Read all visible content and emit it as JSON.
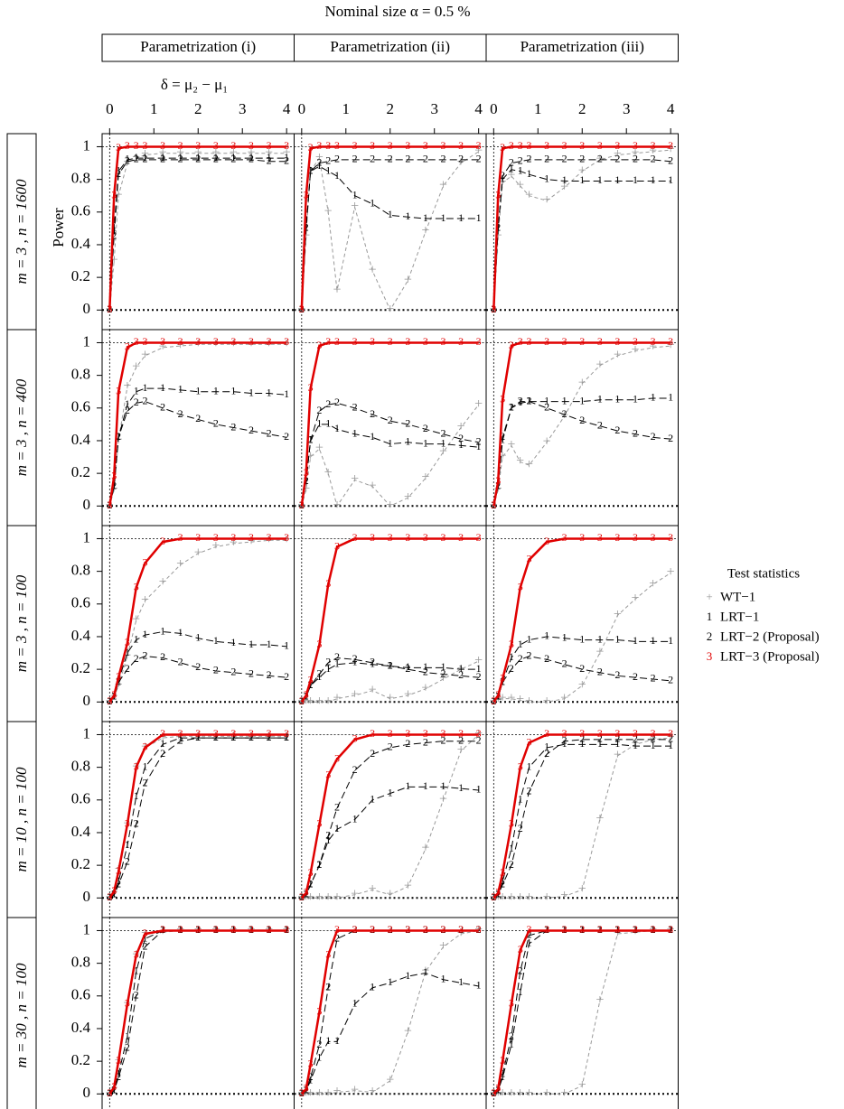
{
  "chart_data": {
    "type": "line",
    "title": "Nominal size α =  0.5 %",
    "x_label": "δ = μ₂ − μ₁",
    "y_label": "Power",
    "column_titles": [
      "Parametrization (i)",
      "Parametrization (ii)",
      "Parametrization (iii)"
    ],
    "row_labels": [
      "m = 3 ,  n = 1600",
      "m = 3 ,  n = 400",
      "m = 3 ,  n = 100",
      "m = 10 ,  n = 100",
      "m = 30 ,  n = 100"
    ],
    "x": [
      0,
      0.1,
      0.2,
      0.4,
      0.6,
      0.8,
      1.2,
      1.6,
      2,
      2.4,
      2.8,
      3.2,
      3.6,
      4
    ],
    "xlim": [
      -0.17,
      4.17
    ],
    "xticks": [
      0,
      1,
      2,
      3,
      4
    ],
    "ylim": [
      -0.12,
      1.08
    ],
    "yticks": [
      0,
      0.2,
      0.4,
      0.6,
      0.8,
      1
    ],
    "legend_title": "Test statistics",
    "series": [
      {
        "name": "WT−1",
        "symbol": "+",
        "color": "#999999",
        "linestyle": "dashed"
      },
      {
        "name": "LRT−1",
        "symbol": "1",
        "color": "#000000",
        "linestyle": "dashed"
      },
      {
        "name": "LRT−2 (Proposal)",
        "symbol": "2",
        "color": "#000000",
        "linestyle": "dashed"
      },
      {
        "name": "LRT−3 (Proposal)",
        "symbol": "3",
        "color": "#e00000",
        "linestyle": "solid"
      }
    ],
    "panels": [
      [
        {
          "values": [
            [
              0,
              0.3,
              0.7,
              0.9,
              0.93,
              0.95,
              0.96,
              0.96,
              0.96,
              0.96,
              0.96,
              0.96,
              0.96,
              0.96
            ],
            [
              0,
              0.5,
              0.85,
              0.92,
              0.93,
              0.93,
              0.93,
              0.93,
              0.93,
              0.93,
              0.93,
              0.93,
              0.93,
              0.93
            ],
            [
              0,
              0.45,
              0.83,
              0.91,
              0.92,
              0.92,
              0.92,
              0.92,
              0.92,
              0.92,
              0.92,
              0.92,
              0.91,
              0.91
            ],
            [
              0,
              0.7,
              0.99,
              1,
              1,
              1,
              1,
              1,
              1,
              1,
              1,
              1,
              1,
              1
            ]
          ]
        },
        {
          "values": [
            [
              0,
              0.45,
              0.85,
              0.93,
              0.6,
              0.12,
              0.63,
              0.24,
              0,
              0.18,
              0.48,
              0.76,
              0.9,
              0.97
            ],
            [
              0,
              0.5,
              0.85,
              0.88,
              0.85,
              0.82,
              0.7,
              0.65,
              0.58,
              0.57,
              0.56,
              0.56,
              0.56,
              0.56
            ],
            [
              0,
              0.5,
              0.85,
              0.9,
              0.91,
              0.92,
              0.92,
              0.92,
              0.92,
              0.92,
              0.92,
              0.92,
              0.92,
              0.92
            ],
            [
              0,
              0.7,
              0.99,
              1,
              1,
              1,
              1,
              1,
              1,
              1,
              1,
              1,
              1,
              1
            ]
          ]
        },
        {
          "values": [
            [
              0,
              0.45,
              0.78,
              0.82,
              0.76,
              0.7,
              0.67,
              0.75,
              0.85,
              0.92,
              0.95,
              0.96,
              0.97,
              0.98
            ],
            [
              0,
              0.5,
              0.8,
              0.86,
              0.85,
              0.83,
              0.8,
              0.79,
              0.79,
              0.79,
              0.79,
              0.79,
              0.79,
              0.79
            ],
            [
              0,
              0.5,
              0.82,
              0.9,
              0.91,
              0.92,
              0.92,
              0.92,
              0.92,
              0.92,
              0.92,
              0.92,
              0.92,
              0.91
            ],
            [
              0,
              0.7,
              0.99,
              1,
              1,
              1,
              1,
              1,
              1,
              1,
              1,
              1,
              1,
              1
            ]
          ]
        }
      ],
      [
        {
          "values": [
            [
              0,
              0.1,
              0.4,
              0.73,
              0.85,
              0.92,
              0.97,
              0.98,
              0.99,
              0.99,
              0.99,
              0.99,
              0.99,
              0.99
            ],
            [
              0,
              0.12,
              0.42,
              0.62,
              0.7,
              0.72,
              0.72,
              0.71,
              0.7,
              0.7,
              0.7,
              0.69,
              0.69,
              0.68
            ],
            [
              0,
              0.12,
              0.42,
              0.58,
              0.63,
              0.64,
              0.6,
              0.56,
              0.53,
              0.5,
              0.48,
              0.46,
              0.44,
              0.42
            ],
            [
              0,
              0.18,
              0.7,
              0.97,
              1,
              1,
              1,
              1,
              1,
              1,
              1,
              1,
              1,
              1
            ]
          ]
        },
        {
          "values": [
            [
              0,
              0.1,
              0.3,
              0.35,
              0.2,
              0,
              0.16,
              0.12,
              0,
              0.05,
              0.17,
              0.33,
              0.48,
              0.62
            ],
            [
              0,
              0.15,
              0.4,
              0.5,
              0.5,
              0.47,
              0.44,
              0.42,
              0.38,
              0.39,
              0.38,
              0.38,
              0.37,
              0.36
            ],
            [
              0,
              0.15,
              0.4,
              0.58,
              0.62,
              0.63,
              0.6,
              0.56,
              0.52,
              0.5,
              0.47,
              0.44,
              0.41,
              0.39
            ],
            [
              0,
              0.2,
              0.72,
              0.98,
              1,
              1,
              1,
              1,
              1,
              1,
              1,
              1,
              1,
              1
            ]
          ]
        },
        {
          "values": [
            [
              0,
              0.1,
              0.3,
              0.37,
              0.27,
              0.25,
              0.39,
              0.55,
              0.75,
              0.86,
              0.92,
              0.95,
              0.97,
              0.98
            ],
            [
              0,
              0.12,
              0.4,
              0.6,
              0.63,
              0.64,
              0.64,
              0.64,
              0.64,
              0.65,
              0.65,
              0.65,
              0.66,
              0.66
            ],
            [
              0,
              0.12,
              0.42,
              0.6,
              0.64,
              0.64,
              0.6,
              0.56,
              0.52,
              0.49,
              0.46,
              0.44,
              0.42,
              0.41
            ],
            [
              0,
              0.15,
              0.65,
              0.98,
              1,
              1,
              1,
              1,
              1,
              1,
              1,
              1,
              1,
              1
            ]
          ]
        }
      ],
      [
        {
          "values": [
            [
              0,
              0.03,
              0.1,
              0.28,
              0.5,
              0.62,
              0.73,
              0.84,
              0.91,
              0.95,
              0.97,
              0.98,
              0.99,
              0.99
            ],
            [
              0,
              0.03,
              0.13,
              0.3,
              0.38,
              0.41,
              0.43,
              0.42,
              0.39,
              0.37,
              0.36,
              0.35,
              0.35,
              0.34
            ],
            [
              0,
              0.03,
              0.12,
              0.2,
              0.26,
              0.28,
              0.27,
              0.24,
              0.21,
              0.19,
              0.18,
              0.17,
              0.16,
              0.15
            ],
            [
              0,
              0.04,
              0.15,
              0.36,
              0.7,
              0.85,
              0.98,
              1,
              1,
              1,
              1,
              1,
              1,
              1
            ]
          ]
        },
        {
          "values": [
            [
              0,
              0,
              0,
              0,
              0,
              0.02,
              0.04,
              0.07,
              0.02,
              0.04,
              0.08,
              0.14,
              0.2,
              0.25
            ],
            [
              0,
              0.03,
              0.1,
              0.15,
              0.2,
              0.23,
              0.24,
              0.23,
              0.22,
              0.21,
              0.21,
              0.21,
              0.2,
              0.2
            ],
            [
              0,
              0.03,
              0.1,
              0.17,
              0.24,
              0.27,
              0.26,
              0.24,
              0.22,
              0.2,
              0.18,
              0.17,
              0.16,
              0.15
            ],
            [
              0,
              0.04,
              0.13,
              0.35,
              0.72,
              0.95,
              1,
              1,
              1,
              1,
              1,
              1,
              1,
              1
            ]
          ]
        },
        {
          "values": [
            [
              0,
              0.01,
              0.02,
              0.02,
              0.01,
              0,
              0,
              0.02,
              0.1,
              0.3,
              0.53,
              0.63,
              0.72,
              0.79
            ],
            [
              0,
              0.03,
              0.12,
              0.27,
              0.35,
              0.38,
              0.4,
              0.39,
              0.38,
              0.38,
              0.38,
              0.37,
              0.37,
              0.37
            ],
            [
              0,
              0.03,
              0.12,
              0.2,
              0.26,
              0.28,
              0.26,
              0.23,
              0.2,
              0.18,
              0.16,
              0.15,
              0.14,
              0.13
            ],
            [
              0,
              0.04,
              0.14,
              0.35,
              0.7,
              0.87,
              0.98,
              1,
              1,
              1,
              1,
              1,
              1,
              1
            ]
          ]
        }
      ],
      [
        {
          "values": [
            [
              0,
              0.03,
              0.17,
              0.45,
              0.8,
              0.92,
              0.98,
              0.99,
              0.99,
              0.99,
              0.99,
              0.99,
              0.99,
              0.99
            ],
            [
              0,
              0.02,
              0.1,
              0.32,
              0.62,
              0.8,
              0.94,
              0.98,
              0.98,
              0.98,
              0.98,
              0.98,
              0.98,
              0.98
            ],
            [
              0,
              0.02,
              0.08,
              0.22,
              0.45,
              0.7,
              0.88,
              0.96,
              0.98,
              0.98,
              0.98,
              0.98,
              0.98,
              0.98
            ],
            [
              0,
              0.04,
              0.16,
              0.45,
              0.8,
              0.92,
              1,
              1,
              1,
              1,
              1,
              1,
              1,
              1
            ]
          ]
        },
        {
          "values": [
            [
              0,
              0,
              0,
              0,
              0,
              0,
              0.02,
              0.05,
              0.02,
              0.07,
              0.3,
              0.6,
              0.9,
              1
            ],
            [
              0,
              0.02,
              0.08,
              0.2,
              0.35,
              0.42,
              0.48,
              0.6,
              0.64,
              0.68,
              0.68,
              0.68,
              0.67,
              0.66
            ],
            [
              0,
              0.02,
              0.08,
              0.2,
              0.38,
              0.55,
              0.78,
              0.88,
              0.92,
              0.94,
              0.95,
              0.96,
              0.96,
              0.96
            ],
            [
              0,
              0.03,
              0.15,
              0.45,
              0.75,
              0.85,
              0.97,
              1,
              1,
              1,
              1,
              1,
              1,
              1
            ]
          ]
        },
        {
          "values": [
            [
              0,
              0,
              0,
              0,
              0,
              0,
              0,
              0.01,
              0.05,
              0.48,
              0.87,
              0.94,
              0.97,
              0.98
            ],
            [
              0,
              0.02,
              0.1,
              0.3,
              0.6,
              0.8,
              0.92,
              0.94,
              0.94,
              0.94,
              0.94,
              0.93,
              0.93,
              0.93
            ],
            [
              0,
              0.02,
              0.08,
              0.2,
              0.42,
              0.65,
              0.88,
              0.96,
              0.97,
              0.97,
              0.97,
              0.97,
              0.97,
              0.97
            ],
            [
              0,
              0.03,
              0.15,
              0.45,
              0.8,
              0.95,
              1,
              1,
              1,
              1,
              1,
              1,
              1,
              1
            ]
          ]
        }
      ],
      [
        {
          "values": [
            [
              0,
              0.03,
              0.2,
              0.55,
              0.85,
              0.98,
              0.99,
              1,
              1,
              1,
              1,
              1,
              1,
              1
            ],
            [
              0,
              0.02,
              0.12,
              0.35,
              0.75,
              0.95,
              1,
              1,
              1,
              1,
              1,
              1,
              1,
              1
            ],
            [
              0,
              0.02,
              0.1,
              0.28,
              0.6,
              0.9,
              1,
              1,
              1,
              1,
              1,
              1,
              1,
              1
            ],
            [
              0,
              0.04,
              0.2,
              0.55,
              0.85,
              0.98,
              1,
              1,
              1,
              1,
              1,
              1,
              1,
              1
            ]
          ]
        },
        {
          "values": [
            [
              0,
              0,
              0,
              0,
              0,
              0.01,
              0.02,
              0.01,
              0.08,
              0.38,
              0.75,
              0.9,
              0.98,
              1
            ],
            [
              0,
              0.02,
              0.08,
              0.22,
              0.32,
              0.32,
              0.55,
              0.65,
              0.68,
              0.72,
              0.74,
              0.7,
              0.68,
              0.66
            ],
            [
              0,
              0.02,
              0.1,
              0.3,
              0.65,
              0.95,
              1,
              1,
              1,
              1,
              1,
              1,
              1,
              1
            ],
            [
              0,
              0.03,
              0.18,
              0.5,
              0.85,
              1,
              1,
              1,
              1,
              1,
              1,
              1,
              1,
              1
            ]
          ]
        },
        {
          "values": [
            [
              0,
              0,
              0,
              0,
              0,
              0,
              0,
              0,
              0.05,
              0.57,
              0.98,
              0.99,
              1,
              1
            ],
            [
              0,
              0.02,
              0.1,
              0.3,
              0.62,
              0.92,
              1,
              1,
              1,
              1,
              1,
              1,
              1,
              1
            ],
            [
              0,
              0.02,
              0.12,
              0.35,
              0.75,
              0.97,
              1,
              1,
              1,
              1,
              1,
              1,
              1,
              1
            ],
            [
              0,
              0.03,
              0.2,
              0.55,
              0.88,
              1,
              1,
              1,
              1,
              1,
              1,
              1,
              1,
              1
            ]
          ]
        }
      ]
    ]
  }
}
